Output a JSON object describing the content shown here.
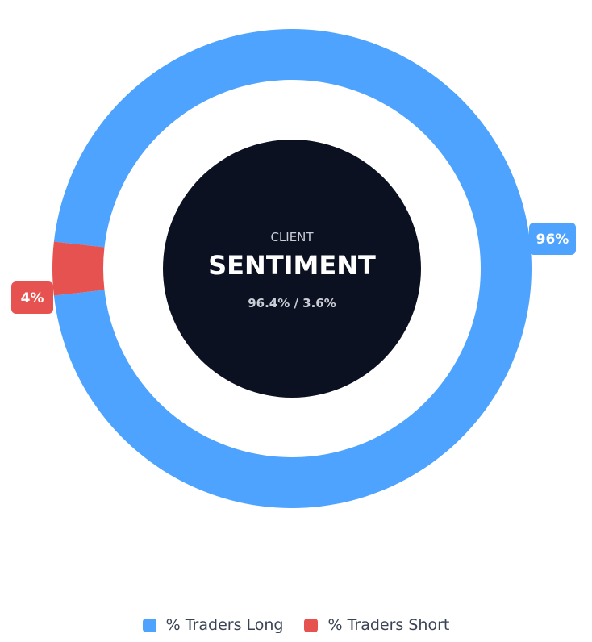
{
  "chart_data": {
    "type": "pie",
    "variant": "donut",
    "center": {
      "subtitle": "CLIENT",
      "title": "SENTIMENT",
      "ratio": "96.4% / 3.6%"
    },
    "series": [
      {
        "name": "% Traders Long",
        "value": 96.4,
        "label": "96%",
        "color": "#4da3fd"
      },
      {
        "name": "% Traders Short",
        "value": 3.6,
        "label": "4%",
        "color": "#e6524f"
      }
    ],
    "legend_position": "bottom"
  },
  "colors": {
    "center_fill": "#0b1121",
    "center_text": "#ffffff",
    "center_subtext": "#c9cdd6"
  }
}
